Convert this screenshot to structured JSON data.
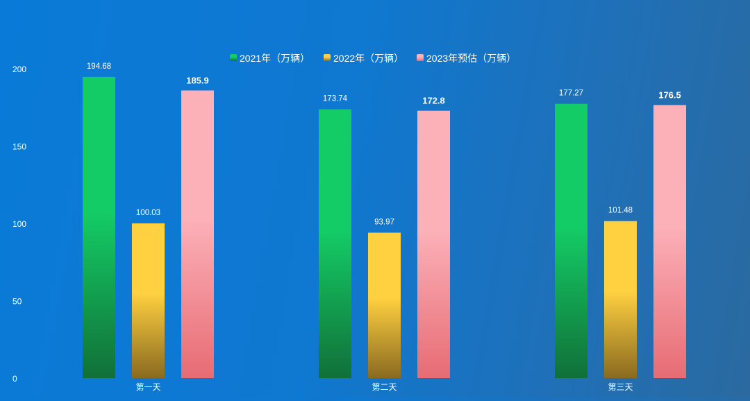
{
  "chart_data": {
    "type": "bar",
    "categories": [
      "第一天",
      "第二天",
      "第三天"
    ],
    "series": [
      {
        "name": "2021年（万辆）",
        "values": [
          194.68,
          173.74,
          177.27
        ],
        "color_top": "#14cc66",
        "color_bottom": "#117038",
        "label_style": "normal"
      },
      {
        "name": "2022年（万辆）",
        "values": [
          100.03,
          93.97,
          101.48
        ],
        "color_top": "#ffd040",
        "color_bottom": "#8a6a20",
        "label_style": "normal"
      },
      {
        "name": "2023年预估（万辆）",
        "values": [
          185.9,
          172.8,
          176.5
        ],
        "color_top": "#fcb0b8",
        "color_bottom": "#e76c74",
        "label_style": "bold"
      }
    ],
    "yticks": [
      0,
      50,
      100,
      150,
      200
    ],
    "ylim": [
      0,
      200
    ],
    "legend_position": "top-center",
    "grid": false
  }
}
